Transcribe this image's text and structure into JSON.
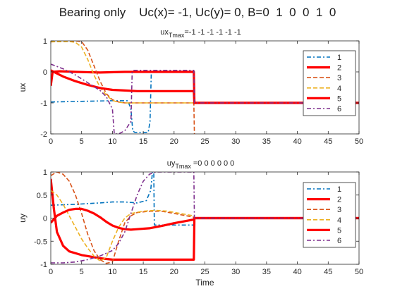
{
  "figure": {
    "title": "Bearing only    Uc(x)= -1, Uc(y)= 0, B=0  1  0  0  1  0"
  },
  "chart_data": [
    {
      "type": "line",
      "subtitle_main": "ux",
      "subtitle_sub": "Tmax",
      "subtitle_rest": "=-1 -1 -1 -1 -1 -1",
      "xlabel": "",
      "ylabel": "ux",
      "xlim": [
        0,
        50
      ],
      "ylim": [
        -2,
        1
      ],
      "xticks": [
        0,
        5,
        10,
        15,
        20,
        25,
        30,
        35,
        40,
        45,
        50
      ],
      "yticks": [
        -2,
        -1,
        0,
        1
      ],
      "legend_position": "right",
      "series": [
        {
          "name": "1",
          "color": "#0072BD",
          "dash": "6,3,2,3",
          "width": 1.6,
          "points": [
            [
              0,
              -0.97
            ],
            [
              5,
              -0.95
            ],
            [
              10,
              -0.93
            ],
            [
              12.5,
              -0.93
            ],
            [
              13,
              -1.2
            ],
            [
              13.3,
              -1.9
            ],
            [
              13.6,
              -1.95
            ],
            [
              14.5,
              -1.95
            ],
            [
              15.8,
              -1.95
            ],
            [
              16.1,
              -1.6
            ],
            [
              16.3,
              0
            ],
            [
              16.5,
              0.02
            ],
            [
              17,
              0.02
            ],
            [
              23.2,
              0.02
            ],
            [
              23.3,
              -1
            ],
            [
              50,
              -1
            ]
          ]
        },
        {
          "name": "2",
          "color": "#FF0000",
          "dash": "",
          "width": 3.2,
          "points": [
            [
              0,
              -0.45
            ],
            [
              0.3,
              0
            ],
            [
              1.5,
              0.02
            ],
            [
              4,
              0.0
            ],
            [
              8,
              -0.02
            ],
            [
              12,
              0
            ],
            [
              18,
              0
            ],
            [
              23.2,
              0
            ],
            [
              23.3,
              -1
            ],
            [
              50,
              -1
            ]
          ]
        },
        {
          "name": "3",
          "color": "#D95319",
          "dash": "6,3",
          "width": 1.6,
          "points": [
            [
              0,
              0.97
            ],
            [
              2,
              0.98
            ],
            [
              4,
              1.0
            ],
            [
              5,
              0.98
            ],
            [
              6,
              0.7
            ],
            [
              7,
              0.2
            ],
            [
              8,
              -0.3
            ],
            [
              9,
              -0.7
            ],
            [
              10,
              -0.9
            ],
            [
              11,
              -0.97
            ],
            [
              12,
              -1.0
            ],
            [
              18,
              -1.0
            ],
            [
              22,
              -1.0
            ],
            [
              23.2,
              -1.0
            ],
            [
              23.3,
              -2.0
            ]
          ]
        },
        {
          "name": "4",
          "color": "#EDB120",
          "dash": "6,3",
          "width": 1.6,
          "points": [
            [
              0,
              0.97
            ],
            [
              3,
              0.98
            ],
            [
              4,
              0.95
            ],
            [
              5,
              0.8
            ],
            [
              6,
              0.4
            ],
            [
              7,
              -0.1
            ],
            [
              8,
              -0.5
            ],
            [
              9,
              -0.75
            ],
            [
              10,
              -0.92
            ],
            [
              11,
              -0.98
            ],
            [
              12,
              -1.0
            ],
            [
              23.2,
              -1.0
            ],
            [
              23.3,
              -1.0
            ],
            [
              50,
              -1.0
            ]
          ]
        },
        {
          "name": "5",
          "color": "#FF0000",
          "dash": "",
          "width": 3.2,
          "points": [
            [
              0,
              0.05
            ],
            [
              1,
              -0.05
            ],
            [
              2,
              -0.15
            ],
            [
              4,
              -0.3
            ],
            [
              6,
              -0.42
            ],
            [
              8,
              -0.52
            ],
            [
              10,
              -0.58
            ],
            [
              12,
              -0.6
            ],
            [
              14,
              -0.62
            ],
            [
              18,
              -0.62
            ],
            [
              23.2,
              -0.62
            ],
            [
              23.3,
              -1.0
            ],
            [
              50,
              -1.0
            ]
          ]
        },
        {
          "name": "6",
          "color": "#7E2F8E",
          "dash": "6,3,2,3",
          "width": 1.6,
          "points": [
            [
              0,
              0.25
            ],
            [
              2,
              0.1
            ],
            [
              4,
              -0.1
            ],
            [
              6,
              -0.35
            ],
            [
              8,
              -0.6
            ],
            [
              9,
              -0.8
            ],
            [
              10,
              -1.2
            ],
            [
              10.3,
              -2.0
            ],
            [
              11,
              -2.0
            ],
            [
              12,
              -1.9
            ],
            [
              13,
              -1.6
            ],
            [
              13.2,
              0
            ],
            [
              13.4,
              0.05
            ],
            [
              14,
              0.05
            ],
            [
              23.2,
              0.05
            ],
            [
              23.3,
              -1.0
            ],
            [
              50,
              -1.0
            ]
          ]
        }
      ]
    },
    {
      "type": "line",
      "subtitle_main": "uy",
      "subtitle_sub": "Tmax",
      "subtitle_rest": " =0  0  0  0  0  0",
      "xlabel": "Time",
      "ylabel": "uy",
      "xlim": [
        0,
        50
      ],
      "ylim": [
        -1,
        1
      ],
      "xticks": [
        0,
        5,
        10,
        15,
        20,
        25,
        30,
        35,
        40,
        45,
        50
      ],
      "yticks": [
        -1,
        -0.5,
        0,
        0.5,
        1
      ],
      "legend_position": "right",
      "series": [
        {
          "name": "1",
          "color": "#0072BD",
          "dash": "6,3,2,3",
          "width": 1.6,
          "points": [
            [
              0,
              0.28
            ],
            [
              4,
              0.3
            ],
            [
              8,
              0.33
            ],
            [
              10,
              0.35
            ],
            [
              12,
              0.35
            ],
            [
              14,
              0.33
            ],
            [
              15.5,
              0.38
            ],
            [
              16.2,
              0.6
            ],
            [
              16.5,
              1.0
            ],
            [
              16.7,
              1.0
            ],
            [
              16.8,
              -0.15
            ],
            [
              17,
              -0.15
            ],
            [
              23.2,
              -0.15
            ],
            [
              23.3,
              0.0
            ],
            [
              50,
              0.0
            ]
          ]
        },
        {
          "name": "2",
          "color": "#FF0000",
          "dash": "",
          "width": 3.2,
          "points": [
            [
              0,
              0.85
            ],
            [
              0.5,
              0.2
            ],
            [
              1,
              -0.3
            ],
            [
              2,
              -0.6
            ],
            [
              3,
              -0.72
            ],
            [
              5,
              -0.8
            ],
            [
              8,
              -0.87
            ],
            [
              10,
              -0.9
            ],
            [
              12,
              -0.9
            ],
            [
              23.2,
              -0.9
            ],
            [
              23.3,
              0.0
            ],
            [
              50,
              0.0
            ]
          ]
        },
        {
          "name": "3",
          "color": "#D95319",
          "dash": "6,3",
          "width": 1.6,
          "points": [
            [
              0,
              0.92
            ],
            [
              1,
              1.0
            ],
            [
              2,
              0.95
            ],
            [
              3,
              0.8
            ],
            [
              4,
              0.5
            ],
            [
              5,
              0.1
            ],
            [
              6,
              -0.35
            ],
            [
              7,
              -0.7
            ],
            [
              8,
              -0.9
            ],
            [
              9,
              -0.98
            ],
            [
              10,
              -0.95
            ],
            [
              11,
              -0.5
            ],
            [
              12,
              -0.1
            ],
            [
              13,
              0.05
            ],
            [
              14,
              0.12
            ],
            [
              16,
              0.15
            ],
            [
              18,
              0.15
            ],
            [
              20,
              0.1
            ],
            [
              22,
              0.05
            ],
            [
              23.2,
              0.02
            ],
            [
              23.3,
              0.0
            ],
            [
              50,
              0.0
            ]
          ]
        },
        {
          "name": "4",
          "color": "#EDB120",
          "dash": "6,3",
          "width": 1.6,
          "points": [
            [
              0,
              0.6
            ],
            [
              1,
              0.5
            ],
            [
              2,
              0.3
            ],
            [
              3,
              0.05
            ],
            [
              4,
              -0.2
            ],
            [
              5,
              -0.45
            ],
            [
              6,
              -0.65
            ],
            [
              7,
              -0.82
            ],
            [
              8,
              -0.93
            ],
            [
              9,
              -0.85
            ],
            [
              10,
              -0.5
            ],
            [
              11,
              -0.2
            ],
            [
              12,
              0.0
            ],
            [
              13,
              0.1
            ],
            [
              15,
              0.15
            ],
            [
              17,
              0.17
            ],
            [
              19,
              0.15
            ],
            [
              21,
              0.1
            ],
            [
              23.2,
              0.05
            ],
            [
              23.3,
              0.0
            ],
            [
              50,
              0.0
            ]
          ]
        },
        {
          "name": "5",
          "color": "#FF0000",
          "dash": "",
          "width": 3.2,
          "points": [
            [
              0,
              -0.1
            ],
            [
              1,
              0.05
            ],
            [
              2,
              0.12
            ],
            [
              3,
              0.18
            ],
            [
              4,
              0.2
            ],
            [
              5,
              0.2
            ],
            [
              6,
              0.16
            ],
            [
              7,
              0.1
            ],
            [
              8,
              0.02
            ],
            [
              9,
              -0.08
            ],
            [
              10,
              -0.16
            ],
            [
              11,
              -0.21
            ],
            [
              12,
              -0.24
            ],
            [
              13,
              -0.25
            ],
            [
              14,
              -0.24
            ],
            [
              16,
              -0.22
            ],
            [
              18,
              -0.17
            ],
            [
              20,
              -0.11
            ],
            [
              22,
              -0.06
            ],
            [
              23.2,
              -0.03
            ],
            [
              23.3,
              0.0
            ],
            [
              50,
              0.0
            ]
          ]
        },
        {
          "name": "6",
          "color": "#7E2F8E",
          "dash": "6,3,2,3",
          "width": 1.6,
          "points": [
            [
              0,
              -0.97
            ],
            [
              2,
              -0.97
            ],
            [
              4,
              -0.95
            ],
            [
              6,
              -0.9
            ],
            [
              8,
              -0.82
            ],
            [
              10,
              -0.7
            ],
            [
              11,
              -0.55
            ],
            [
              12,
              -0.3
            ],
            [
              13,
              0.1
            ],
            [
              14,
              0.5
            ],
            [
              15,
              0.8
            ],
            [
              16,
              0.95
            ],
            [
              17,
              1.0
            ],
            [
              23.2,
              1.0
            ],
            [
              23.3,
              0.0
            ],
            [
              50,
              0.0
            ]
          ]
        }
      ]
    }
  ]
}
